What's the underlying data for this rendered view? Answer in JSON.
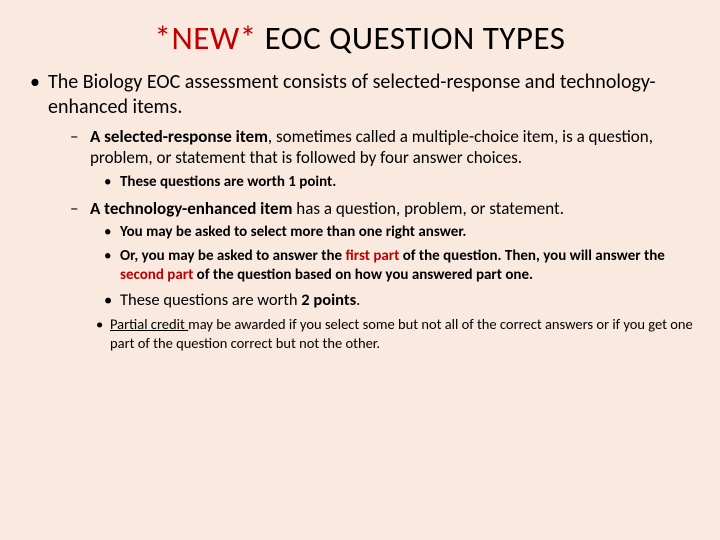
{
  "colors": {
    "background": "#f9e9df",
    "text": "#000000",
    "accent": "#c00000"
  },
  "typography": {
    "font_family": "Calibri",
    "title_fontsize": 33,
    "lv1_fontsize": 20,
    "lv2_fontsize": 17,
    "lv3_fontsize": 15,
    "lv3b_fontsize": 16.5,
    "lv4_fontsize": 14.5
  },
  "title": {
    "new": "*NEW* ",
    "rest": "EOC QUESTION TYPES"
  },
  "lv1_intro": "The Biology EOC assessment consists of selected-response and technology-enhanced items.",
  "selected_response": {
    "lead_bold": "A selected-response item",
    "lead_rest": ", sometimes called a multiple-choice item, is a question, problem, or statement that is followed by four answer choices.",
    "worth": "These questions are worth 1 point."
  },
  "tech_enhanced": {
    "lead_bold": "A technology-enhanced item",
    "lead_rest": " has a question, problem, or statement.",
    "sub1": "You may be asked to select more than one right answer.",
    "sub2_a": "Or, you may be asked to answer the ",
    "sub2_first": "first part",
    "sub2_b": " of the question. Then, you will answer the ",
    "sub2_second": "second part",
    "sub2_c": " of the question based on how you answered part one.",
    "worth_a": "These questions are worth ",
    "worth_b": "2 points",
    "worth_c": ".",
    "partial_a": "Partial credit ",
    "partial_b": "may be awarded if you select some but not all of the correct answers or if you get one part of the question correct but not the other."
  }
}
